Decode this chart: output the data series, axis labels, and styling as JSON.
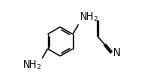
{
  "bg_color": "#ffffff",
  "line_color": "#000000",
  "text_color": "#000000",
  "fig_width": 1.56,
  "fig_height": 0.83,
  "dpi": 100,
  "font_size": 7.0
}
